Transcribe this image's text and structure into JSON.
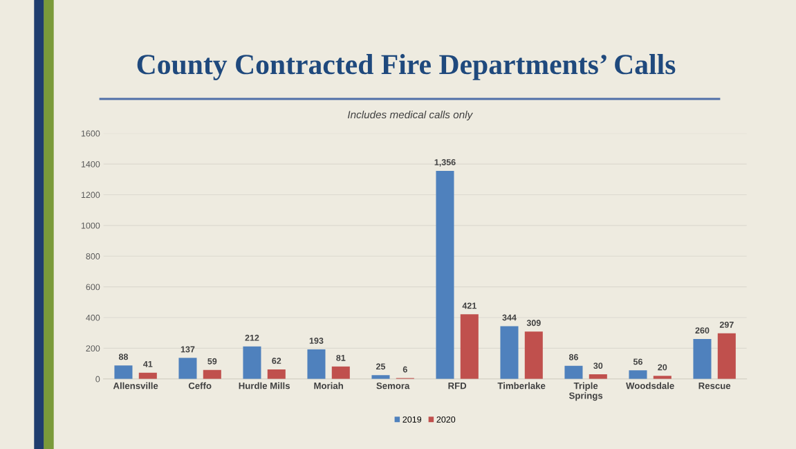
{
  "chart_data": {
    "type": "bar",
    "title": "County Contracted Fire Departments’ Calls",
    "subtitle": "Includes medical calls only",
    "categories": [
      "Allensville",
      "Ceffo",
      "Hurdle Mills",
      "Moriah",
      "Semora",
      "RFD",
      "Timberlake",
      "Triple\nSprings",
      "Woodsdale",
      "Rescue"
    ],
    "series": [
      {
        "name": "2019",
        "color": "#4f81bd",
        "values": [
          88,
          137,
          212,
          193,
          25,
          1356,
          344,
          86,
          56,
          260
        ],
        "value_labels": [
          "88",
          "137",
          "212",
          "193",
          "25",
          "1,356",
          "344",
          "86",
          "56",
          "260"
        ]
      },
      {
        "name": "2020",
        "color": "#c0504d",
        "values": [
          41,
          59,
          62,
          81,
          6,
          421,
          309,
          30,
          20,
          297
        ],
        "value_labels": [
          "41",
          "59",
          "62",
          "81",
          "6",
          "421",
          "309",
          "30",
          "20",
          "297"
        ]
      }
    ],
    "ylim": [
      0,
      1600
    ],
    "yticks": [
      0,
      200,
      400,
      600,
      800,
      1000,
      1200,
      1400,
      1600
    ],
    "grid": "y",
    "legend": "bottom"
  }
}
